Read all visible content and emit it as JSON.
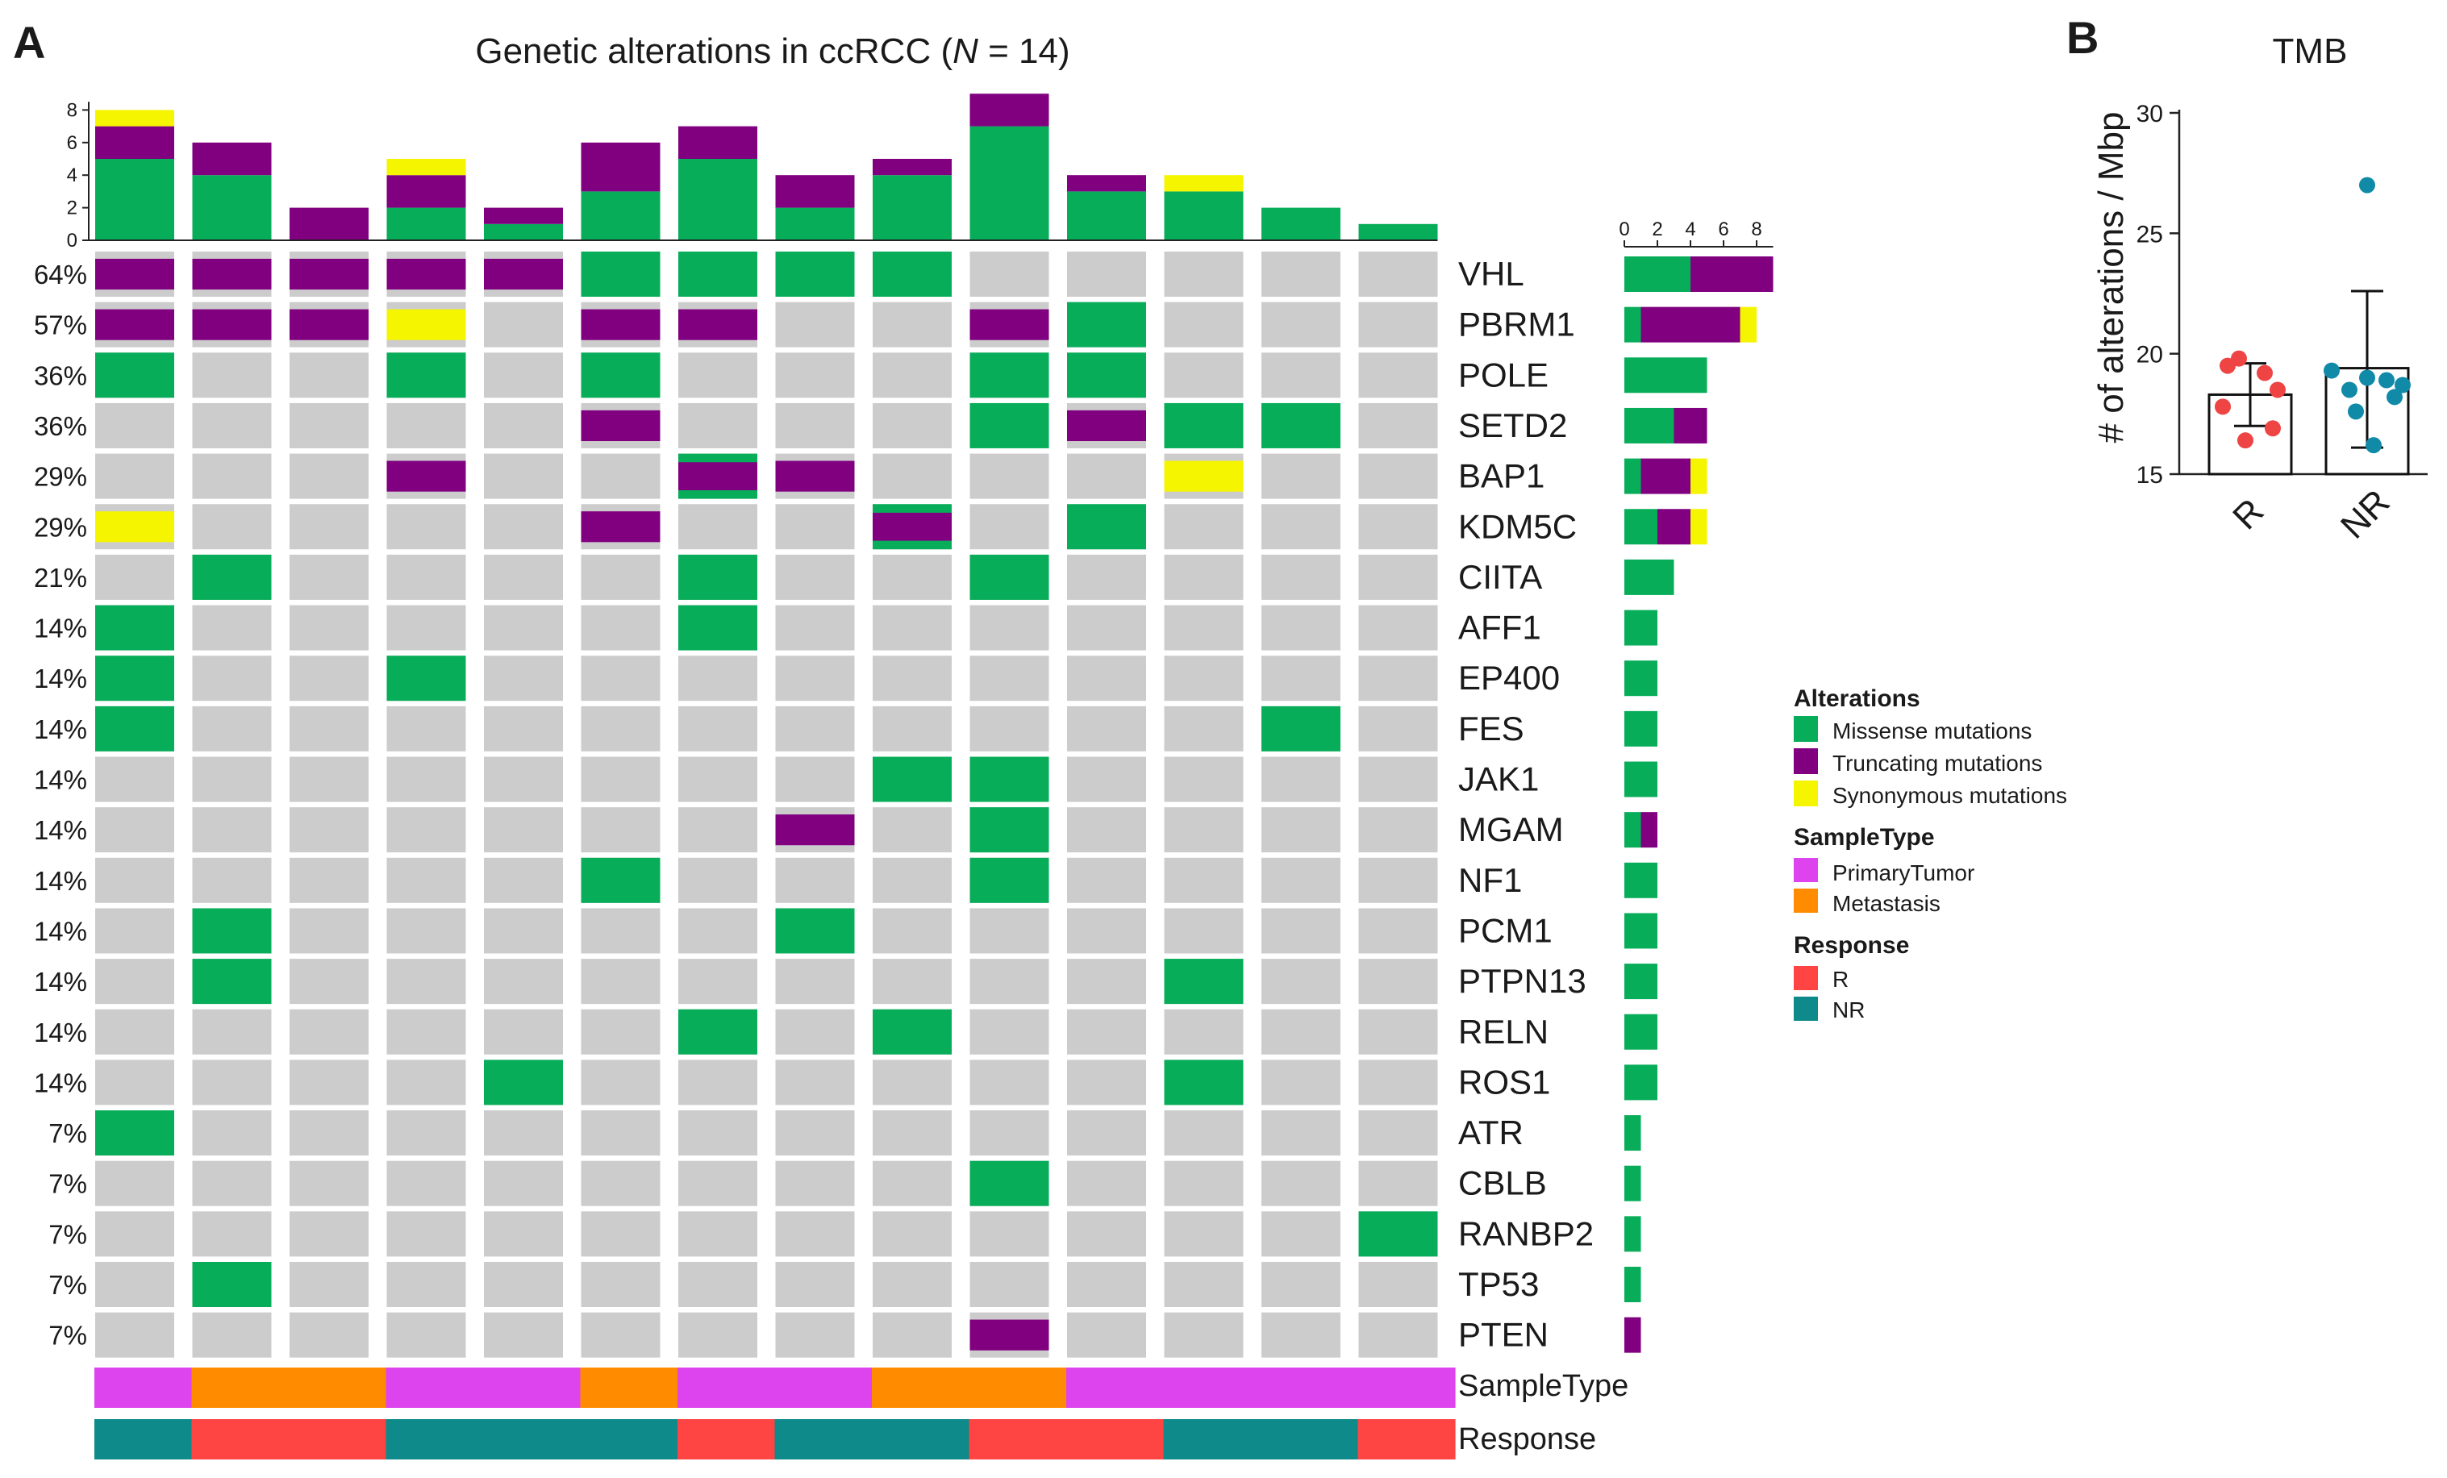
{
  "panel_a_label": "A",
  "panel_b_label": "B",
  "colors": {
    "missense": "#08ad5a",
    "truncating": "#800080",
    "synonymous": "#f5f500",
    "empty": "#cccccc",
    "primary_tumor": "#dd44ee",
    "metastasis": "#ff8c00",
    "R": "#ff4444",
    "NR": "#0e8a8a",
    "dotR": "#ee4444",
    "dotNR": "#118aa8"
  },
  "chart_data": [
    {
      "type": "oncoprint",
      "title_prefix": "Genetic  alterations  in ccRCC (",
      "title_italic": "N",
      "title_suffix": " = 14)",
      "n_samples": 14,
      "genes": [
        "VHL",
        "PBRM1",
        "POLE",
        "SETD2",
        "BAP1",
        "KDM5C",
        "CIITA",
        "AFF1",
        "EP400",
        "FES",
        "JAK1",
        "MGAM",
        "NF1",
        "PCM1",
        "PTPN13",
        "RELN",
        "ROS1",
        "ATR",
        "CBLB",
        "RANBP2",
        "TP53",
        "PTEN"
      ],
      "percentages": [
        "64%",
        "57%",
        "36%",
        "36%",
        "29%",
        "29%",
        "21%",
        "14%",
        "14%",
        "14%",
        "14%",
        "14%",
        "14%",
        "14%",
        "14%",
        "14%",
        "14%",
        "7%",
        "7%",
        "7%",
        "7%",
        "7%"
      ],
      "matrix_legend": "M = missense, T = truncating, S = synonymous, MT = missense+truncating, empty = none",
      "matrix": [
        [
          "T",
          "T",
          "T",
          "T",
          "T",
          "M",
          "M",
          "M",
          "M",
          "",
          "",
          "",
          "",
          ""
        ],
        [
          "T",
          "T",
          "T",
          "S",
          "",
          "T",
          "T",
          "",
          "",
          "T",
          "M",
          "",
          "",
          ""
        ],
        [
          "M",
          "",
          "",
          "M",
          "",
          "M",
          "",
          "",
          "",
          "M",
          "M",
          "",
          "",
          ""
        ],
        [
          "",
          "",
          "",
          "",
          "",
          "T",
          "",
          "",
          "",
          "M",
          "T",
          "M",
          "M",
          ""
        ],
        [
          "",
          "",
          "",
          "T",
          "",
          "",
          "MT",
          "T",
          "",
          "",
          "",
          "S",
          "",
          ""
        ],
        [
          "S",
          "",
          "",
          "",
          "",
          "T",
          "",
          "",
          "MT",
          "",
          "M",
          "",
          "",
          ""
        ],
        [
          "",
          "M",
          "",
          "",
          "",
          "",
          "M",
          "",
          "",
          "M",
          "",
          "",
          "",
          ""
        ],
        [
          "M",
          "",
          "",
          "",
          "",
          "",
          "M",
          "",
          "",
          "",
          "",
          "",
          "",
          ""
        ],
        [
          "M",
          "",
          "",
          "M",
          "",
          "",
          "",
          "",
          "",
          "",
          "",
          "",
          "",
          ""
        ],
        [
          "M",
          "",
          "",
          "",
          "",
          "",
          "",
          "",
          "",
          "",
          "",
          "",
          "M",
          ""
        ],
        [
          "",
          "",
          "",
          "",
          "",
          "",
          "",
          "",
          "M",
          "M",
          "",
          "",
          "",
          ""
        ],
        [
          "",
          "",
          "",
          "",
          "",
          "",
          "",
          "T",
          "",
          "M",
          "",
          "",
          "",
          ""
        ],
        [
          "",
          "",
          "",
          "",
          "",
          "M",
          "",
          "",
          "",
          "M",
          "",
          "",
          "",
          ""
        ],
        [
          "",
          "M",
          "",
          "",
          "",
          "",
          "",
          "M",
          "",
          "",
          "",
          "",
          "",
          ""
        ],
        [
          "",
          "M",
          "",
          "",
          "",
          "",
          "",
          "",
          "",
          "",
          "",
          "M",
          "",
          ""
        ],
        [
          "",
          "",
          "",
          "",
          "",
          "",
          "M",
          "",
          "M",
          "",
          "",
          "",
          "",
          ""
        ],
        [
          "",
          "",
          "",
          "",
          "M",
          "",
          "",
          "",
          "",
          "",
          "",
          "M",
          "",
          ""
        ],
        [
          "M",
          "",
          "",
          "",
          "",
          "",
          "",
          "",
          "",
          "",
          "",
          "",
          "",
          ""
        ],
        [
          "",
          "",
          "",
          "",
          "",
          "",
          "",
          "",
          "",
          "M",
          "",
          "",
          "",
          ""
        ],
        [
          "",
          "",
          "",
          "",
          "",
          "",
          "",
          "",
          "",
          "",
          "",
          "",
          "",
          "M"
        ],
        [
          "",
          "M",
          "",
          "",
          "",
          "",
          "",
          "",
          "",
          "",
          "",
          "",
          "",
          ""
        ],
        [
          "",
          "",
          "",
          "",
          "",
          "",
          "",
          "",
          "",
          "T",
          "",
          "",
          "",
          ""
        ]
      ],
      "sample_bar_counts": {
        "missense": [
          5,
          4,
          0,
          2,
          1,
          3,
          5,
          2,
          4,
          7,
          3,
          3,
          2,
          1
        ],
        "truncating": [
          2,
          2,
          2,
          2,
          1,
          3,
          2,
          2,
          1,
          2,
          1,
          0,
          0,
          0
        ],
        "synonymous": [
          1,
          0,
          0,
          1,
          0,
          0,
          0,
          0,
          0,
          0,
          0,
          1,
          0,
          0
        ]
      },
      "sample_axis_ticks": [
        "0",
        "2",
        "4",
        "6",
        "8"
      ],
      "sample_axis_max": 9,
      "gene_bar_counts": {
        "missense": [
          4,
          1,
          5,
          3,
          1,
          2,
          3,
          2,
          2,
          2,
          2,
          1,
          2,
          2,
          2,
          2,
          2,
          1,
          1,
          1,
          1,
          0
        ],
        "truncating": [
          5,
          6,
          0,
          2,
          3,
          2,
          0,
          0,
          0,
          0,
          0,
          1,
          0,
          0,
          0,
          0,
          0,
          0,
          0,
          0,
          0,
          1
        ],
        "synonymous": [
          0,
          1,
          0,
          0,
          1,
          1,
          0,
          0,
          0,
          0,
          0,
          0,
          0,
          0,
          0,
          0,
          0,
          0,
          0,
          0,
          0,
          0
        ]
      },
      "gene_axis_ticks": [
        "0",
        "2",
        "4",
        "6",
        "8"
      ],
      "gene_axis_max": 9,
      "sample_type": [
        "PrimaryTumor",
        "Metastasis",
        "Metastasis",
        "PrimaryTumor",
        "PrimaryTumor",
        "Metastasis",
        "PrimaryTumor",
        "PrimaryTumor",
        "Metastasis",
        "Metastasis",
        "PrimaryTumor",
        "PrimaryTumor",
        "PrimaryTumor",
        "PrimaryTumor"
      ],
      "response": [
        "NR",
        "R",
        "R",
        "NR",
        "NR",
        "NR",
        "R",
        "NR",
        "NR",
        "R",
        "R",
        "NR",
        "NR",
        "R"
      ],
      "track_labels": {
        "sample_type": "SampleType",
        "response": "Response"
      },
      "legend": {
        "alterations_title": "Alterations",
        "alterations": [
          "Missense mutations",
          "Truncating mutations",
          "Synonymous mutations"
        ],
        "sample_type_title": "SampleType",
        "sample_types": [
          "PrimaryTumor",
          "Metastasis"
        ],
        "response_title": "Response",
        "responses": [
          "R",
          "NR"
        ]
      }
    },
    {
      "type": "scatter_bar",
      "title": "TMB",
      "ylabel": "# of alterations / Mbp",
      "ylim": [
        15,
        30
      ],
      "yticks": [
        "15",
        "20",
        "25",
        "30"
      ],
      "categories": [
        "R",
        "NR"
      ],
      "means": [
        18.3,
        19.4
      ],
      "errors": [
        [
          17.0,
          19.6
        ],
        [
          16.1,
          22.6
        ]
      ],
      "points": {
        "R": [
          19.8,
          19.5,
          19.2,
          18.5,
          17.8,
          16.9,
          16.4
        ],
        "NR": [
          27.0,
          19.3,
          19.0,
          18.9,
          18.7,
          18.5,
          18.2,
          17.6,
          16.2
        ]
      }
    }
  ]
}
